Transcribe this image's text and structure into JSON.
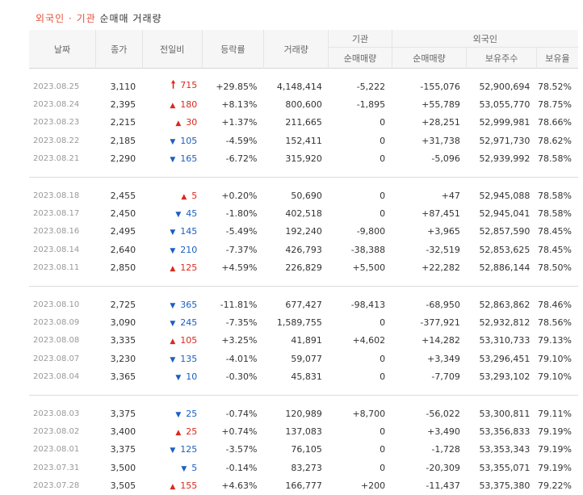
{
  "title": {
    "accent": "외국인 · 기관",
    "rest": " 순매매 거래량"
  },
  "headers": {
    "date": "날짜",
    "close": "종가",
    "change": "전일비",
    "rate": "등락률",
    "volume": "거래량",
    "institution": "기관",
    "inst_net": "순매매량",
    "foreign": "외국인",
    "foreign_net": "순매매량",
    "holdings": "보유주수",
    "ratio": "보유율"
  },
  "groups": [
    [
      {
        "date": "2023.08.25",
        "close": "3,110",
        "dir": "limit",
        "change": "715",
        "rate": "+29.85%",
        "volume": "4,148,414",
        "inst": "-5,222",
        "frgn": "-155,076",
        "hold": "52,900,694",
        "ratio": "78.52%"
      },
      {
        "date": "2023.08.24",
        "close": "2,395",
        "dir": "up",
        "change": "180",
        "rate": "+8.13%",
        "volume": "800,600",
        "inst": "-1,895",
        "frgn": "+55,789",
        "hold": "53,055,770",
        "ratio": "78.75%"
      },
      {
        "date": "2023.08.23",
        "close": "2,215",
        "dir": "up",
        "change": "30",
        "rate": "+1.37%",
        "volume": "211,665",
        "inst": "0",
        "frgn": "+28,251",
        "hold": "52,999,981",
        "ratio": "78.66%"
      },
      {
        "date": "2023.08.22",
        "close": "2,185",
        "dir": "down",
        "change": "105",
        "rate": "-4.59%",
        "volume": "152,411",
        "inst": "0",
        "frgn": "+31,738",
        "hold": "52,971,730",
        "ratio": "78.62%"
      },
      {
        "date": "2023.08.21",
        "close": "2,290",
        "dir": "down",
        "change": "165",
        "rate": "-6.72%",
        "volume": "315,920",
        "inst": "0",
        "frgn": "-5,096",
        "hold": "52,939,992",
        "ratio": "78.58%"
      }
    ],
    [
      {
        "date": "2023.08.18",
        "close": "2,455",
        "dir": "up",
        "change": "5",
        "rate": "+0.20%",
        "volume": "50,690",
        "inst": "0",
        "frgn": "+47",
        "hold": "52,945,088",
        "ratio": "78.58%"
      },
      {
        "date": "2023.08.17",
        "close": "2,450",
        "dir": "down",
        "change": "45",
        "rate": "-1.80%",
        "volume": "402,518",
        "inst": "0",
        "frgn": "+87,451",
        "hold": "52,945,041",
        "ratio": "78.58%"
      },
      {
        "date": "2023.08.16",
        "close": "2,495",
        "dir": "down",
        "change": "145",
        "rate": "-5.49%",
        "volume": "192,240",
        "inst": "-9,800",
        "frgn": "+3,965",
        "hold": "52,857,590",
        "ratio": "78.45%"
      },
      {
        "date": "2023.08.14",
        "close": "2,640",
        "dir": "down",
        "change": "210",
        "rate": "-7.37%",
        "volume": "426,793",
        "inst": "-38,388",
        "frgn": "-32,519",
        "hold": "52,853,625",
        "ratio": "78.45%"
      },
      {
        "date": "2023.08.11",
        "close": "2,850",
        "dir": "up",
        "change": "125",
        "rate": "+4.59%",
        "volume": "226,829",
        "inst": "+5,500",
        "frgn": "+22,282",
        "hold": "52,886,144",
        "ratio": "78.50%"
      }
    ],
    [
      {
        "date": "2023.08.10",
        "close": "2,725",
        "dir": "down",
        "change": "365",
        "rate": "-11.81%",
        "volume": "677,427",
        "inst": "-98,413",
        "frgn": "-68,950",
        "hold": "52,863,862",
        "ratio": "78.46%"
      },
      {
        "date": "2023.08.09",
        "close": "3,090",
        "dir": "down",
        "change": "245",
        "rate": "-7.35%",
        "volume": "1,589,755",
        "inst": "0",
        "frgn": "-377,921",
        "hold": "52,932,812",
        "ratio": "78.56%"
      },
      {
        "date": "2023.08.08",
        "close": "3,335",
        "dir": "up",
        "change": "105",
        "rate": "+3.25%",
        "volume": "41,891",
        "inst": "+4,602",
        "frgn": "+14,282",
        "hold": "53,310,733",
        "ratio": "79.13%"
      },
      {
        "date": "2023.08.07",
        "close": "3,230",
        "dir": "down",
        "change": "135",
        "rate": "-4.01%",
        "volume": "59,077",
        "inst": "0",
        "frgn": "+3,349",
        "hold": "53,296,451",
        "ratio": "79.10%"
      },
      {
        "date": "2023.08.04",
        "close": "3,365",
        "dir": "down",
        "change": "10",
        "rate": "-0.30%",
        "volume": "45,831",
        "inst": "0",
        "frgn": "-7,709",
        "hold": "53,293,102",
        "ratio": "79.10%"
      }
    ],
    [
      {
        "date": "2023.08.03",
        "close": "3,375",
        "dir": "down",
        "change": "25",
        "rate": "-0.74%",
        "volume": "120,989",
        "inst": "+8,700",
        "frgn": "-56,022",
        "hold": "53,300,811",
        "ratio": "79.11%"
      },
      {
        "date": "2023.08.02",
        "close": "3,400",
        "dir": "up",
        "change": "25",
        "rate": "+0.74%",
        "volume": "137,083",
        "inst": "0",
        "frgn": "+3,490",
        "hold": "53,356,833",
        "ratio": "79.19%"
      },
      {
        "date": "2023.08.01",
        "close": "3,375",
        "dir": "down",
        "change": "125",
        "rate": "-3.57%",
        "volume": "76,105",
        "inst": "0",
        "frgn": "-1,728",
        "hold": "53,353,343",
        "ratio": "79.19%"
      },
      {
        "date": "2023.07.31",
        "close": "3,500",
        "dir": "down",
        "change": "5",
        "rate": "-0.14%",
        "volume": "83,273",
        "inst": "0",
        "frgn": "-20,309",
        "hold": "53,355,071",
        "ratio": "79.19%"
      },
      {
        "date": "2023.07.28",
        "close": "3,505",
        "dir": "up",
        "change": "155",
        "rate": "+4.63%",
        "volume": "166,777",
        "inst": "+200",
        "frgn": "-11,437",
        "hold": "53,375,380",
        "ratio": "79.22%"
      }
    ]
  ],
  "arrow_icons": {
    "limit": "🠕",
    "up": "▲",
    "down": "▼"
  },
  "colors": {
    "up": "#d9291c",
    "down": "#1a5fc2",
    "accent": "#e4503a"
  }
}
